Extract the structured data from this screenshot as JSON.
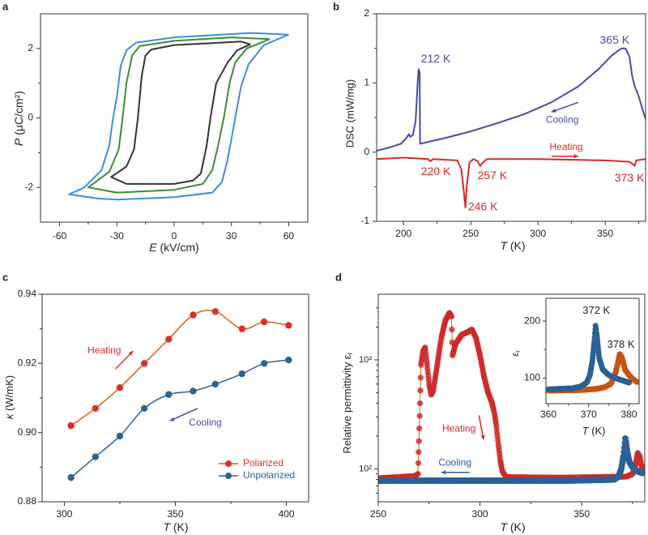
{
  "panels": [
    "a",
    "b",
    "c",
    "d"
  ],
  "chart_data": [
    {
      "panel": "a",
      "type": "line",
      "xlabel_var": "E",
      "xlabel_unit": "(kV/cm)",
      "ylabel_var": "P",
      "ylabel_unit": "(μC/cm²)",
      "xlim": [
        -70,
        70
      ],
      "ylim": [
        -3,
        3
      ],
      "xticks": [
        "-60",
        "-30",
        "0",
        "30",
        "60"
      ],
      "yticks": [
        "-2",
        "0",
        "2"
      ],
      "grid": false,
      "series": [
        {
          "color": "#3b8fd9",
          "points": [
            [
              60,
              2.4
            ],
            [
              40,
              2.45
            ],
            [
              0,
              2.32
            ],
            [
              -20,
              2.17
            ],
            [
              -25,
              1.95
            ],
            [
              -28,
              1.5
            ],
            [
              -30,
              0.6
            ],
            [
              -32,
              0
            ],
            [
              -34,
              -0.8
            ],
            [
              -38,
              -1.5
            ],
            [
              -47,
              -2.0
            ],
            [
              -55,
              -2.2
            ],
            [
              -40,
              -2.32
            ],
            [
              -30,
              -2.35
            ],
            [
              0,
              -2.28
            ],
            [
              20,
              -2.15
            ],
            [
              25,
              -1.85
            ],
            [
              28,
              -1.2
            ],
            [
              32,
              0
            ],
            [
              35,
              0.9
            ],
            [
              39,
              1.55
            ],
            [
              47,
              2.1
            ],
            [
              60,
              2.4
            ]
          ]
        },
        {
          "color": "#3d8b37",
          "points": [
            [
              50,
              2.27
            ],
            [
              30,
              2.32
            ],
            [
              0,
              2.22
            ],
            [
              -18,
              2.07
            ],
            [
              -22,
              1.8
            ],
            [
              -25,
              1.0
            ],
            [
              -27,
              0
            ],
            [
              -29,
              -0.9
            ],
            [
              -34,
              -1.55
            ],
            [
              -45,
              -2.0
            ],
            [
              -30,
              -2.15
            ],
            [
              0,
              -2.07
            ],
            [
              15,
              -1.9
            ],
            [
              20,
              -1.5
            ],
            [
              23,
              -0.8
            ],
            [
              26,
              0
            ],
            [
              29,
              1.0
            ],
            [
              32,
              1.6
            ],
            [
              38,
              2.0
            ],
            [
              50,
              2.27
            ]
          ]
        },
        {
          "color": "#333333",
          "points": [
            [
              40,
              2.12
            ],
            [
              35,
              2.2
            ],
            [
              0,
              2.1
            ],
            [
              -12,
              1.97
            ],
            [
              -15,
              1.8
            ],
            [
              -17,
              1.2
            ],
            [
              -19,
              0
            ],
            [
              -21,
              -0.9
            ],
            [
              -25,
              -1.4
            ],
            [
              -33,
              -1.7
            ],
            [
              -25,
              -1.9
            ],
            [
              0,
              -1.9
            ],
            [
              10,
              -1.8
            ],
            [
              14,
              -1.6
            ],
            [
              17,
              -0.8
            ],
            [
              19,
              0
            ],
            [
              22,
              1.0
            ],
            [
              28,
              1.6
            ],
            [
              33,
              1.95
            ],
            [
              40,
              2.12
            ]
          ]
        }
      ]
    },
    {
      "panel": "b",
      "type": "line",
      "xlabel_var": "T",
      "xlabel_unit": "(K)",
      "ylabel": "DSC (mW/mg)",
      "xlim": [
        180,
        380
      ],
      "ylim": [
        -1,
        2
      ],
      "xticks": [
        "200",
        "250",
        "300",
        "350"
      ],
      "yticks": [
        "-1",
        "0",
        "1",
        "2"
      ],
      "grid": false,
      "series": [
        {
          "label": "Cooling",
          "color": "#4a4aa8",
          "points": [
            [
              180,
              0.02
            ],
            [
              190,
              0.07
            ],
            [
              198,
              0.12
            ],
            [
              202,
              0.2
            ],
            [
              204,
              0.26
            ],
            [
              205,
              0.22
            ],
            [
              207,
              0.25
            ],
            [
              209,
              0.45
            ],
            [
              210.5,
              1.0
            ],
            [
              211.2,
              1.2
            ],
            [
              212,
              1.15
            ],
            [
              212.3,
              0.12
            ],
            [
              230,
              0.2
            ],
            [
              250,
              0.3
            ],
            [
              270,
              0.42
            ],
            [
              290,
              0.55
            ],
            [
              310,
              0.72
            ],
            [
              330,
              0.95
            ],
            [
              345,
              1.2
            ],
            [
              355,
              1.4
            ],
            [
              362,
              1.5
            ],
            [
              365,
              1.5
            ],
            [
              368,
              1.38
            ],
            [
              370,
              1.1
            ],
            [
              372,
              0.95
            ],
            [
              375,
              0.8
            ],
            [
              378,
              0.6
            ],
            [
              380,
              0.48
            ]
          ]
        },
        {
          "label": "Heating",
          "color": "#d42a2a",
          "points": [
            [
              180,
              -0.1
            ],
            [
              200,
              -0.08
            ],
            [
              218,
              -0.1
            ],
            [
              220,
              -0.13
            ],
            [
              222,
              -0.1
            ],
            [
              240,
              -0.12
            ],
            [
              243,
              -0.25
            ],
            [
              245,
              -0.6
            ],
            [
              246,
              -0.8
            ],
            [
              247,
              -0.5
            ],
            [
              249,
              -0.15
            ],
            [
              252,
              -0.1
            ],
            [
              255,
              -0.13
            ],
            [
              257,
              -0.2
            ],
            [
              259,
              -0.15
            ],
            [
              262,
              -0.1
            ],
            [
              300,
              -0.1
            ],
            [
              350,
              -0.12
            ],
            [
              368,
              -0.14
            ],
            [
              371,
              -0.18
            ],
            [
              372,
              -0.2
            ],
            [
              373,
              -0.12
            ],
            [
              380,
              -0.1
            ]
          ]
        }
      ],
      "annotations": [
        "212 K",
        "365 K",
        "220 K",
        "246 K",
        "257 K",
        "373 K",
        "Cooling",
        "Heating"
      ]
    },
    {
      "panel": "c",
      "type": "line",
      "xlabel_var": "T",
      "xlabel_unit": "(K)",
      "ylabel_var": "κ",
      "ylabel_unit": "(W/mK)",
      "xlim": [
        290,
        410
      ],
      "ylim": [
        0.88,
        0.94
      ],
      "xticks": [
        "300",
        "350",
        "400"
      ],
      "yticks": [
        "0.88",
        "0.90",
        "0.92",
        "0.94"
      ],
      "grid": false,
      "legend_position": "bottom-right",
      "x": [
        303,
        314,
        325,
        336,
        347,
        358,
        368,
        380,
        390,
        401
      ],
      "series": [
        {
          "name": "Polarized",
          "color": "#d9302c",
          "line_color": "#d4621c",
          "values": [
            0.902,
            0.907,
            0.913,
            0.92,
            0.927,
            0.934,
            0.935,
            0.93,
            0.932,
            0.931
          ]
        },
        {
          "name": "Unpolarized",
          "color": "#2a6496",
          "line_color": "#2a6496",
          "values": [
            0.887,
            0.893,
            0.899,
            0.907,
            0.911,
            0.912,
            0.914,
            0.917,
            0.92,
            0.921
          ]
        }
      ],
      "annotations": [
        "Heating",
        "Cooling"
      ]
    },
    {
      "panel": "d",
      "type": "scatter",
      "xlabel_var": "T",
      "xlabel_unit": "(K)",
      "ylabel": "Relative permittivity ε",
      "ylabel_sub": "r",
      "xlim": [
        250,
        381
      ],
      "ylim": [
        50,
        4000
      ],
      "y_scale": "log",
      "xticks": [
        "250",
        "300",
        "350"
      ],
      "yticks": [
        "10²",
        "10³"
      ],
      "grid": false,
      "series": [
        {
          "label": "Heating",
          "color": "#cc2a2a",
          "line_color": "#d4621c",
          "points": [
            [
              250,
              82
            ],
            [
              268,
              86
            ],
            [
              269.5,
              90
            ],
            [
              270,
              180
            ],
            [
              270.5,
              400
            ],
            [
              271,
              900
            ],
            [
              272,
              1200
            ],
            [
              273,
              1300
            ],
            [
              274,
              900
            ],
            [
              275,
              600
            ],
            [
              276,
              480
            ],
            [
              277,
              520
            ],
            [
              279,
              900
            ],
            [
              281,
              1600
            ],
            [
              283,
              2300
            ],
            [
              285,
              2700
            ],
            [
              286,
              2500
            ],
            [
              286.5,
              1100
            ],
            [
              288,
              1400
            ],
            [
              291,
              1700
            ],
            [
              294,
              1800
            ],
            [
              296,
              1900
            ],
            [
              298,
              1600
            ],
            [
              300,
              1100
            ],
            [
              302,
              700
            ],
            [
              304,
              500
            ],
            [
              306,
              400
            ],
            [
              307,
              330
            ],
            [
              308,
              250
            ],
            [
              309,
              170
            ],
            [
              310,
              120
            ],
            [
              311,
              95
            ],
            [
              313,
              84
            ],
            [
              340,
              83
            ],
            [
              372,
              85
            ],
            [
              375,
              90
            ],
            [
              376.5,
              110
            ],
            [
              377.5,
              140
            ],
            [
              378.5,
              130
            ],
            [
              379.5,
              105
            ],
            [
              381,
              95
            ]
          ]
        },
        {
          "label": "Cooling",
          "color": "#2c6096",
          "points": [
            [
              250,
              78
            ],
            [
              340,
              78
            ],
            [
              366,
              80
            ],
            [
              368,
              85
            ],
            [
              369.5,
              100
            ],
            [
              370.5,
              130
            ],
            [
              371.5,
              190
            ],
            [
              372.5,
              140
            ],
            [
              373.5,
              115
            ],
            [
              375.5,
              100
            ],
            [
              378,
              94
            ],
            [
              380,
              92
            ]
          ]
        }
      ],
      "annotations": [
        "Heating",
        "Cooling"
      ],
      "inset": {
        "xlabel_var": "T",
        "xlabel_unit": "(K)",
        "ylabel": "ε",
        "ylabel_sub": "r",
        "xlim": [
          359.4,
          382.5
        ],
        "ylim": [
          55,
          240
        ],
        "xticks": [
          "360",
          "370",
          "380"
        ],
        "yticks": [
          "100",
          "200"
        ],
        "series": [
          {
            "color": "#c8540f",
            "points": [
              [
                360,
                78
              ],
              [
                368,
                79
              ],
              [
                372,
                81
              ],
              [
                374,
                84
              ],
              [
                375.5,
                90
              ],
              [
                376.5,
                105
              ],
              [
                377.2,
                125
              ],
              [
                377.7,
                142
              ],
              [
                378.3,
                135
              ],
              [
                379,
                115
              ],
              [
                380,
                105
              ],
              [
                381,
                98
              ],
              [
                382,
                93
              ]
            ]
          },
          {
            "color": "#2c6096",
            "points": [
              [
                360,
                80
              ],
              [
                366,
                82
              ],
              [
                368,
                85
              ],
              [
                369.5,
                92
              ],
              [
                370.3,
                105
              ],
              [
                370.9,
                130
              ],
              [
                371.4,
                165
              ],
              [
                371.7,
                192
              ],
              [
                372.1,
                170
              ],
              [
                372.6,
                135
              ],
              [
                373.5,
                115
              ],
              [
                375,
                105
              ],
              [
                377,
                99
              ],
              [
                380,
                92
              ]
            ]
          }
        ],
        "annotations": [
          "372 K",
          "378 K"
        ]
      }
    }
  ]
}
